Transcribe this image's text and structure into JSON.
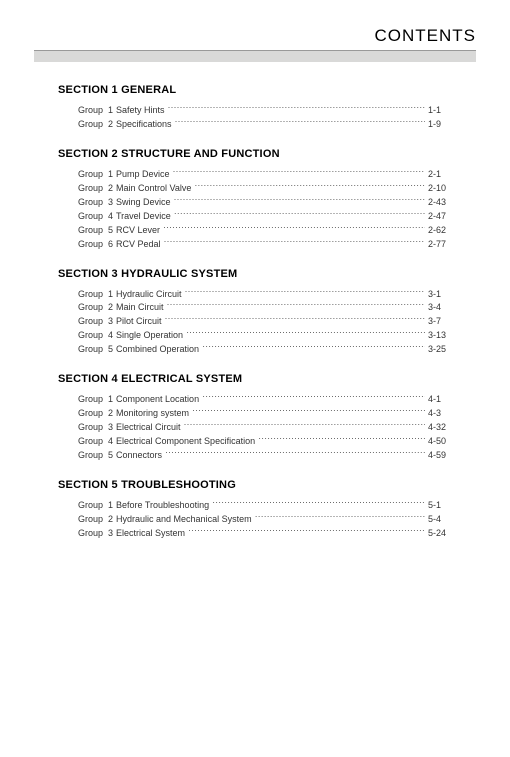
{
  "header": {
    "title": "CONTENTS"
  },
  "group_prefix": "Group",
  "sections": [
    {
      "title": "SECTION 1  GENERAL",
      "groups": [
        {
          "num": "1",
          "label": "Safety Hints",
          "page": "1-1"
        },
        {
          "num": "2",
          "label": "Specifications",
          "page": "1-9"
        }
      ]
    },
    {
      "title": "SECTION 2  STRUCTURE AND FUNCTION",
      "groups": [
        {
          "num": "1",
          "label": "Pump Device",
          "page": "2-1"
        },
        {
          "num": "2",
          "label": "Main Control Valve",
          "page": "2-10"
        },
        {
          "num": "3",
          "label": "Swing Device",
          "page": "2-43"
        },
        {
          "num": "4",
          "label": "Travel Device",
          "page": "2-47"
        },
        {
          "num": "5",
          "label": "RCV Lever",
          "page": "2-62"
        },
        {
          "num": "6",
          "label": "RCV Pedal",
          "page": "2-77"
        }
      ]
    },
    {
      "title": "SECTION 3  HYDRAULIC SYSTEM",
      "groups": [
        {
          "num": "1",
          "label": "Hydraulic Circuit",
          "page": "3-1"
        },
        {
          "num": "2",
          "label": "Main Circuit",
          "page": "3-4"
        },
        {
          "num": "3",
          "label": "Pilot Circuit",
          "page": "3-7"
        },
        {
          "num": "4",
          "label": "Single Operation",
          "page": "3-13"
        },
        {
          "num": "5",
          "label": "Combined Operation",
          "page": "3-25"
        }
      ]
    },
    {
      "title": "SECTION 4  ELECTRICAL SYSTEM",
      "groups": [
        {
          "num": "1",
          "label": "Component Location",
          "page": "4-1"
        },
        {
          "num": "2",
          "label": "Monitoring system",
          "page": "4-3"
        },
        {
          "num": "3",
          "label": "Electrical Circuit",
          "page": "4-32"
        },
        {
          "num": "4",
          "label": "Electrical Component Specification",
          "page": "4-50"
        },
        {
          "num": "5",
          "label": "Connectors",
          "page": "4-59"
        }
      ]
    },
    {
      "title": "SECTION 5  TROUBLESHOOTING",
      "groups": [
        {
          "num": "1",
          "label": "Before Troubleshooting",
          "page": "5-1"
        },
        {
          "num": "2",
          "label": "Hydraulic and Mechanical System",
          "page": "5-4"
        },
        {
          "num": "3",
          "label": "Electrical System",
          "page": "5-24"
        }
      ]
    }
  ],
  "colors": {
    "gray_bar": "#d9d9d8",
    "gray_bar_border": "#999999",
    "text": "#222222",
    "leader": "#555555",
    "background": "#ffffff"
  },
  "fonts": {
    "title_size_pt": 17,
    "section_size_pt": 11,
    "body_size_pt": 9
  }
}
